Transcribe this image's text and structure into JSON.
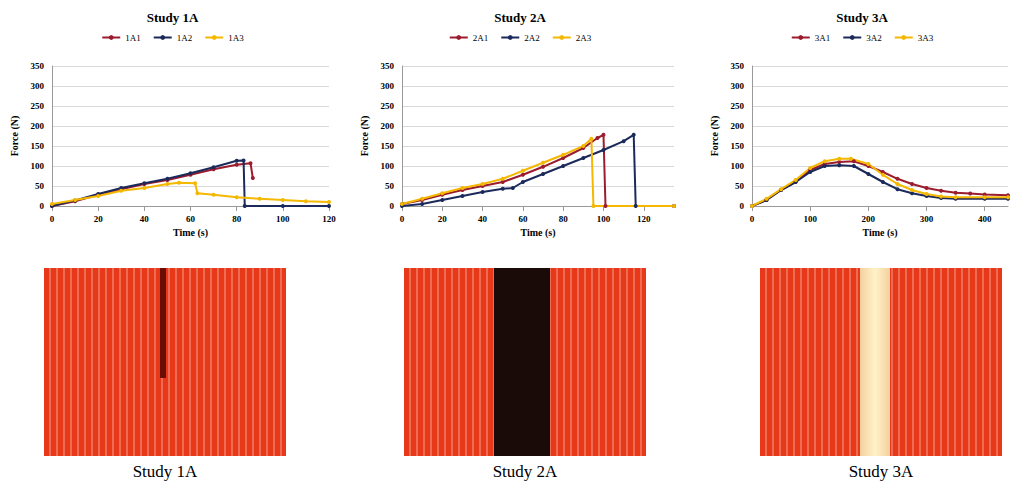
{
  "chart_data": [
    {
      "type": "line",
      "title": "Study 1A",
      "x_label": "Time (s)",
      "y_label": "Force (N)",
      "xlim": [
        0,
        120
      ],
      "xticks": [
        0,
        20,
        40,
        60,
        80,
        100,
        120
      ],
      "ylim": [
        0,
        350
      ],
      "yticks": [
        0,
        50,
        100,
        150,
        200,
        250,
        300,
        350
      ],
      "grid": true,
      "legend": "top",
      "marker": "circle",
      "line_style": "solid",
      "series": [
        {
          "name": "1A1",
          "color": "#9b1c2e",
          "x": [
            0,
            10,
            20,
            30,
            40,
            50,
            60,
            70,
            80,
            86,
            87
          ],
          "values": [
            0,
            12,
            28,
            42,
            55,
            65,
            78,
            92,
            103,
            107,
            70
          ]
        },
        {
          "name": "1A2",
          "color": "#1b2a5a",
          "x": [
            0,
            10,
            20,
            30,
            40,
            50,
            60,
            70,
            80,
            83,
            83.5,
            100,
            120
          ],
          "values": [
            0,
            14,
            30,
            45,
            57,
            68,
            82,
            97,
            113,
            114,
            0,
            0,
            0
          ]
        },
        {
          "name": "1A3",
          "color": "#f5b800",
          "x": [
            0,
            10,
            20,
            30,
            40,
            50,
            55,
            62,
            63,
            70,
            80,
            90,
            100,
            110,
            120
          ],
          "values": [
            5,
            15,
            25,
            38,
            45,
            55,
            58,
            57,
            32,
            28,
            22,
            18,
            15,
            12,
            10
          ]
        }
      ]
    },
    {
      "type": "line",
      "title": "Study 2A",
      "x_label": "Time (s)",
      "y_label": "Force (N)",
      "xlim": [
        0,
        135
      ],
      "xticks": [
        0,
        20,
        40,
        60,
        80,
        100,
        120
      ],
      "ylim": [
        0,
        350
      ],
      "yticks": [
        0,
        50,
        100,
        150,
        200,
        250,
        300,
        350
      ],
      "grid": true,
      "legend": "top",
      "marker": "circle",
      "line_style": "solid",
      "series": [
        {
          "name": "2A1",
          "color": "#9b1c2e",
          "x": [
            0,
            10,
            20,
            30,
            40,
            50,
            60,
            70,
            80,
            90,
            97,
            100,
            101,
            135
          ],
          "values": [
            5,
            15,
            28,
            40,
            50,
            60,
            78,
            98,
            120,
            145,
            170,
            178,
            0,
            0
          ]
        },
        {
          "name": "2A2",
          "color": "#1b2a5a",
          "x": [
            0,
            10,
            20,
            30,
            40,
            50,
            55,
            60,
            70,
            80,
            90,
            100,
            110,
            115,
            116,
            135
          ],
          "values": [
            0,
            5,
            15,
            25,
            35,
            43,
            45,
            60,
            80,
            100,
            120,
            140,
            162,
            178,
            0,
            0
          ]
        },
        {
          "name": "2A3",
          "color": "#f5b800",
          "x": [
            0,
            10,
            20,
            30,
            40,
            50,
            60,
            70,
            80,
            90,
            94,
            95,
            135
          ],
          "values": [
            5,
            18,
            32,
            45,
            55,
            68,
            88,
            108,
            128,
            150,
            168,
            0,
            0
          ]
        }
      ]
    },
    {
      "type": "line",
      "title": "Study 3A",
      "x_label": "Time (s)",
      "y_label": "Force (N)",
      "xlim": [
        0,
        440
      ],
      "xticks": [
        0,
        100,
        200,
        300,
        400
      ],
      "ylim": [
        0,
        350
      ],
      "yticks": [
        0,
        50,
        100,
        150,
        200,
        250,
        300,
        350
      ],
      "grid": true,
      "legend": "top",
      "marker": "circle",
      "line_style": "solid",
      "series": [
        {
          "name": "3A1",
          "color": "#9b1c2e",
          "x": [
            0,
            25,
            50,
            75,
            100,
            125,
            150,
            175,
            200,
            225,
            250,
            275,
            300,
            325,
            350,
            375,
            400,
            440
          ],
          "values": [
            0,
            15,
            40,
            60,
            90,
            105,
            110,
            112,
            100,
            85,
            68,
            55,
            45,
            38,
            33,
            31,
            29,
            27
          ]
        },
        {
          "name": "3A2",
          "color": "#1b2a5a",
          "x": [
            0,
            25,
            50,
            75,
            100,
            125,
            150,
            175,
            200,
            225,
            250,
            275,
            300,
            325,
            350,
            400,
            440
          ],
          "values": [
            0,
            15,
            40,
            60,
            85,
            100,
            102,
            100,
            80,
            60,
            42,
            32,
            25,
            20,
            18,
            18,
            18
          ]
        },
        {
          "name": "3A3",
          "color": "#f5b800",
          "x": [
            0,
            25,
            50,
            75,
            100,
            125,
            150,
            170,
            200,
            225,
            250,
            275,
            300,
            325,
            350,
            400,
            440
          ],
          "values": [
            0,
            18,
            42,
            65,
            95,
            112,
            118,
            118,
            105,
            78,
            55,
            40,
            30,
            24,
            22,
            22,
            22
          ]
        }
      ]
    }
  ],
  "images": [
    {
      "caption": "Study 1A"
    },
    {
      "caption": "Study 2A"
    },
    {
      "caption": "Study 3A"
    }
  ]
}
